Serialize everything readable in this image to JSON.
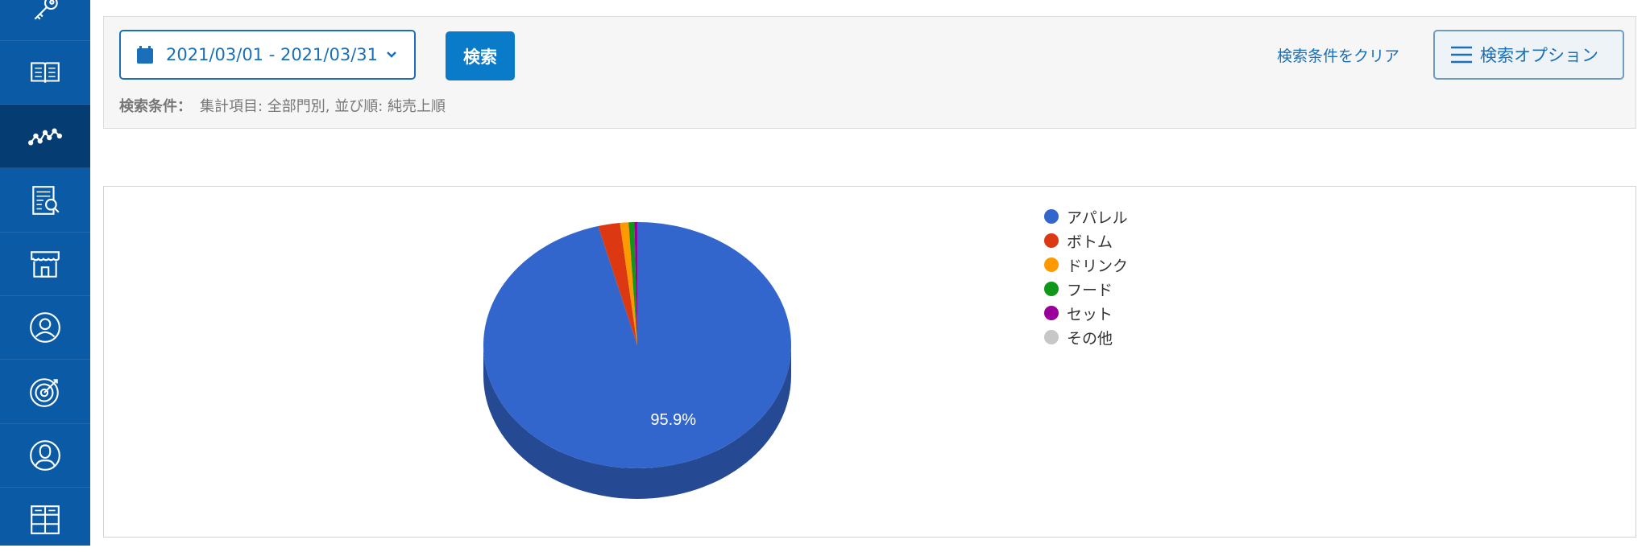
{
  "sidebar": {
    "items": [
      {
        "icon": "key-icon",
        "active": false
      },
      {
        "icon": "book-icon",
        "active": false
      },
      {
        "icon": "trend-icon",
        "active": true
      },
      {
        "icon": "report-search-icon",
        "active": false
      },
      {
        "icon": "store-icon",
        "active": false
      },
      {
        "icon": "user-circle-icon",
        "active": false
      },
      {
        "icon": "target-icon",
        "active": false
      },
      {
        "icon": "person-icon",
        "active": false
      },
      {
        "icon": "grid-icon",
        "active": false
      }
    ]
  },
  "search": {
    "date_range": "2021/03/01 - 2021/03/31",
    "search_label": "検索",
    "conditions_label": "検索条件：",
    "conditions_value": "集計項目: 全部門別, 並び順: 純売上順",
    "clear_label": "検索条件をクリア",
    "options_label": "検索オプション"
  },
  "chart_data": {
    "type": "pie",
    "three_d": true,
    "slices": [
      {
        "name": "アパレル",
        "value": 95.9,
        "color": "#3366cc"
      },
      {
        "name": "ボトム",
        "value": 2.3,
        "color": "#dc3912"
      },
      {
        "name": "ドリンク",
        "value": 0.9,
        "color": "#ff9900"
      },
      {
        "name": "フード",
        "value": 0.6,
        "color": "#109618"
      },
      {
        "name": "セット",
        "value": 0.3,
        "color": "#990099"
      },
      {
        "name": "その他",
        "value": 0.0,
        "color": "#c7c7c7"
      }
    ],
    "data_label": "95.9%",
    "legend_position": "right"
  }
}
